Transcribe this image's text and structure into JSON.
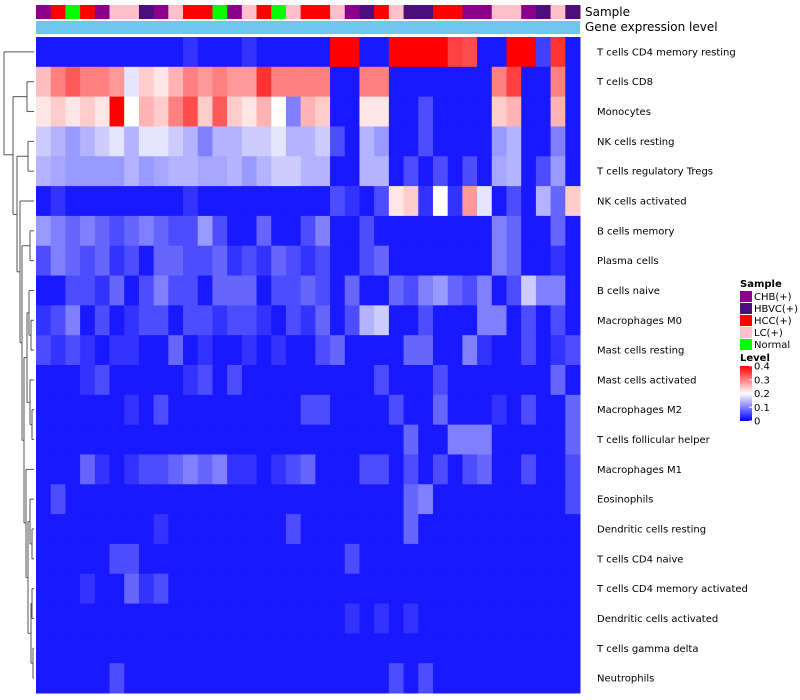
{
  "chart_data": {
    "type": "heatmap",
    "annotation_tracks": [
      "Sample",
      "Gene expression level"
    ],
    "rows": [
      "T cells CD4 memory resting",
      "T cells CD8",
      "Monocytes",
      "NK cells resting",
      "T cells regulatory  Tregs",
      "NK cells activated",
      "B cells memory",
      "Plasma cells",
      "B cells naive",
      "Macrophages M0",
      "Mast cells resting",
      "Mast cells activated",
      "Macrophages M2",
      "T cells follicular helper",
      "Macrophages M1",
      "Eosinophils",
      "Dendritic cells resting",
      "T cells CD4 naive",
      "T cells CD4 memory activated",
      "Dendritic cells activated",
      "T cells gamma delta",
      "Neutrophils"
    ],
    "sample_groups": [
      "CHB(+)",
      "HCC(+)",
      "Normal",
      "HCC(+)",
      "CHB(+)",
      "LC(+)",
      "LC(+)",
      "HBVC(+)",
      "CHB(+)",
      "LC(+)",
      "HCC(+)",
      "HCC(+)",
      "Normal",
      "CHB(+)",
      "LC(+)",
      "HCC(+)",
      "Normal",
      "LC(+)",
      "HCC(+)",
      "HCC(+)",
      "LC(+)",
      "CHB(+)",
      "HBVC(+)",
      "HCC(+)",
      "LC(+)",
      "HBVC(+)",
      "HBVC(+)",
      "HCC(+)",
      "HCC(+)",
      "CHB(+)",
      "CHB(+)",
      "LC(+)",
      "LC(+)",
      "CHB(+)",
      "HBVC(+)",
      "LC(+)",
      "HBVC(+)"
    ],
    "expression_level_color": "#6ec6ee",
    "values": [
      [
        0.02,
        0.02,
        0.02,
        0.02,
        0.02,
        0.02,
        0.02,
        0.02,
        0.02,
        0.02,
        0.04,
        0.02,
        0.02,
        0.02,
        0.04,
        0.02,
        0.02,
        0.02,
        0.02,
        0.02,
        0.4,
        0.4,
        0.02,
        0.02,
        0.4,
        0.4,
        0.4,
        0.4,
        0.35,
        0.34,
        0.02,
        0.02,
        0.4,
        0.4,
        0.05,
        0.36,
        0.02
      ],
      [
        0.25,
        0.3,
        0.33,
        0.3,
        0.3,
        0.28,
        0.18,
        0.24,
        0.22,
        0.26,
        0.3,
        0.28,
        0.3,
        0.28,
        0.28,
        0.36,
        0.3,
        0.3,
        0.3,
        0.3,
        0.02,
        0.02,
        0.3,
        0.3,
        0.02,
        0.02,
        0.02,
        0.02,
        0.02,
        0.02,
        0.02,
        0.3,
        0.35,
        0.02,
        0.02,
        0.3,
        0.02
      ],
      [
        0.22,
        0.24,
        0.22,
        0.24,
        0.22,
        0.4,
        0.2,
        0.26,
        0.24,
        0.3,
        0.34,
        0.24,
        0.33,
        0.24,
        0.22,
        0.26,
        0.2,
        0.1,
        0.26,
        0.24,
        0.02,
        0.02,
        0.22,
        0.22,
        0.02,
        0.02,
        0.06,
        0.02,
        0.02,
        0.02,
        0.02,
        0.24,
        0.26,
        0.02,
        0.02,
        0.26,
        0.02
      ],
      [
        0.16,
        0.14,
        0.12,
        0.14,
        0.16,
        0.18,
        0.14,
        0.18,
        0.18,
        0.16,
        0.14,
        0.1,
        0.14,
        0.14,
        0.16,
        0.16,
        0.18,
        0.14,
        0.14,
        0.16,
        0.06,
        0.02,
        0.14,
        0.12,
        0.02,
        0.02,
        0.06,
        0.02,
        0.02,
        0.02,
        0.02,
        0.12,
        0.14,
        0.02,
        0.02,
        0.1,
        0.02
      ],
      [
        0.14,
        0.13,
        0.12,
        0.12,
        0.12,
        0.12,
        0.14,
        0.12,
        0.13,
        0.14,
        0.14,
        0.13,
        0.13,
        0.14,
        0.12,
        0.14,
        0.16,
        0.16,
        0.14,
        0.14,
        0.02,
        0.02,
        0.14,
        0.14,
        0.02,
        0.06,
        0.02,
        0.06,
        0.02,
        0.06,
        0.02,
        0.13,
        0.14,
        0.02,
        0.06,
        0.12,
        0.02
      ],
      [
        0.02,
        0.04,
        0.02,
        0.02,
        0.02,
        0.02,
        0.02,
        0.02,
        0.02,
        0.02,
        0.04,
        0.02,
        0.02,
        0.02,
        0.02,
        0.02,
        0.02,
        0.02,
        0.02,
        0.02,
        0.06,
        0.04,
        0.02,
        0.06,
        0.22,
        0.24,
        0.04,
        0.2,
        0.04,
        0.28,
        0.18,
        0.02,
        0.06,
        0.02,
        0.14,
        0.08,
        0.24
      ],
      [
        0.12,
        0.1,
        0.08,
        0.1,
        0.08,
        0.06,
        0.08,
        0.1,
        0.08,
        0.06,
        0.06,
        0.12,
        0.06,
        0.02,
        0.02,
        0.08,
        0.02,
        0.02,
        0.06,
        0.1,
        0.02,
        0.02,
        0.06,
        0.02,
        0.02,
        0.02,
        0.02,
        0.02,
        0.02,
        0.02,
        0.02,
        0.1,
        0.08,
        0.02,
        0.02,
        0.08,
        0.02
      ],
      [
        0.06,
        0.1,
        0.08,
        0.06,
        0.08,
        0.04,
        0.06,
        0.02,
        0.08,
        0.08,
        0.06,
        0.06,
        0.08,
        0.04,
        0.06,
        0.04,
        0.08,
        0.06,
        0.04,
        0.06,
        0.02,
        0.02,
        0.06,
        0.08,
        0.02,
        0.02,
        0.02,
        0.02,
        0.02,
        0.02,
        0.02,
        0.1,
        0.08,
        0.02,
        0.02,
        0.04,
        0.02
      ],
      [
        0.02,
        0.02,
        0.06,
        0.06,
        0.04,
        0.08,
        0.02,
        0.06,
        0.1,
        0.06,
        0.06,
        0.02,
        0.08,
        0.08,
        0.08,
        0.02,
        0.06,
        0.06,
        0.08,
        0.06,
        0.02,
        0.08,
        0.02,
        0.02,
        0.08,
        0.06,
        0.1,
        0.12,
        0.08,
        0.06,
        0.1,
        0.02,
        0.06,
        0.16,
        0.1,
        0.1,
        0.02
      ],
      [
        0.04,
        0.06,
        0.1,
        0.02,
        0.06,
        0.02,
        0.04,
        0.06,
        0.06,
        0.02,
        0.06,
        0.06,
        0.04,
        0.06,
        0.06,
        0.04,
        0.02,
        0.06,
        0.04,
        0.08,
        0.02,
        0.06,
        0.14,
        0.16,
        0.02,
        0.02,
        0.06,
        0.02,
        0.02,
        0.02,
        0.1,
        0.1,
        0.02,
        0.06,
        0.02,
        0.06,
        0.02
      ],
      [
        0.06,
        0.04,
        0.06,
        0.04,
        0.02,
        0.04,
        0.04,
        0.02,
        0.02,
        0.08,
        0.02,
        0.04,
        0.02,
        0.02,
        0.04,
        0.02,
        0.04,
        0.02,
        0.02,
        0.06,
        0.08,
        0.02,
        0.02,
        0.02,
        0.02,
        0.08,
        0.08,
        0.02,
        0.02,
        0.1,
        0.04,
        0.02,
        0.02,
        0.06,
        0.02,
        0.04,
        0.06
      ],
      [
        0.02,
        0.02,
        0.02,
        0.04,
        0.06,
        0.02,
        0.02,
        0.02,
        0.02,
        0.02,
        0.04,
        0.06,
        0.02,
        0.06,
        0.02,
        0.02,
        0.02,
        0.02,
        0.02,
        0.02,
        0.02,
        0.02,
        0.02,
        0.06,
        0.02,
        0.02,
        0.02,
        0.06,
        0.02,
        0.02,
        0.02,
        0.02,
        0.02,
        0.02,
        0.02,
        0.08,
        0.02
      ],
      [
        0.02,
        0.02,
        0.02,
        0.02,
        0.02,
        0.02,
        0.04,
        0.02,
        0.06,
        0.02,
        0.02,
        0.02,
        0.02,
        0.02,
        0.02,
        0.02,
        0.02,
        0.02,
        0.06,
        0.06,
        0.02,
        0.02,
        0.02,
        0.02,
        0.06,
        0.02,
        0.02,
        0.08,
        0.02,
        0.02,
        0.02,
        0.04,
        0.02,
        0.06,
        0.02,
        0.02,
        0.08
      ],
      [
        0.02,
        0.02,
        0.02,
        0.02,
        0.02,
        0.02,
        0.02,
        0.02,
        0.02,
        0.02,
        0.02,
        0.02,
        0.02,
        0.02,
        0.02,
        0.02,
        0.02,
        0.02,
        0.02,
        0.02,
        0.02,
        0.02,
        0.02,
        0.02,
        0.02,
        0.08,
        0.02,
        0.02,
        0.1,
        0.1,
        0.1,
        0.02,
        0.02,
        0.02,
        0.02,
        0.02,
        0.08
      ],
      [
        0.02,
        0.02,
        0.02,
        0.08,
        0.04,
        0.02,
        0.04,
        0.06,
        0.06,
        0.08,
        0.1,
        0.08,
        0.1,
        0.04,
        0.04,
        0.02,
        0.04,
        0.06,
        0.08,
        0.02,
        0.02,
        0.02,
        0.06,
        0.06,
        0.02,
        0.06,
        0.02,
        0.06,
        0.02,
        0.06,
        0.08,
        0.02,
        0.02,
        0.06,
        0.02,
        0.02,
        0.06
      ],
      [
        0.02,
        0.06,
        0.02,
        0.02,
        0.02,
        0.02,
        0.02,
        0.02,
        0.02,
        0.02,
        0.02,
        0.02,
        0.02,
        0.02,
        0.02,
        0.02,
        0.02,
        0.02,
        0.02,
        0.02,
        0.02,
        0.02,
        0.02,
        0.02,
        0.02,
        0.08,
        0.1,
        0.02,
        0.02,
        0.02,
        0.02,
        0.02,
        0.02,
        0.02,
        0.02,
        0.02,
        0.06
      ],
      [
        0.02,
        0.02,
        0.02,
        0.02,
        0.02,
        0.02,
        0.02,
        0.02,
        0.04,
        0.02,
        0.02,
        0.02,
        0.02,
        0.02,
        0.02,
        0.02,
        0.02,
        0.06,
        0.02,
        0.02,
        0.02,
        0.02,
        0.02,
        0.02,
        0.02,
        0.08,
        0.02,
        0.02,
        0.02,
        0.02,
        0.02,
        0.02,
        0.02,
        0.02,
        0.02,
        0.02,
        0.02
      ],
      [
        0.02,
        0.02,
        0.02,
        0.02,
        0.02,
        0.06,
        0.06,
        0.02,
        0.02,
        0.02,
        0.02,
        0.02,
        0.02,
        0.02,
        0.02,
        0.02,
        0.02,
        0.02,
        0.02,
        0.02,
        0.02,
        0.06,
        0.02,
        0.02,
        0.02,
        0.02,
        0.02,
        0.02,
        0.02,
        0.02,
        0.02,
        0.02,
        0.02,
        0.02,
        0.02,
        0.02,
        0.02
      ],
      [
        0.02,
        0.02,
        0.02,
        0.04,
        0.02,
        0.02,
        0.08,
        0.04,
        0.06,
        0.02,
        0.02,
        0.02,
        0.02,
        0.02,
        0.02,
        0.02,
        0.02,
        0.02,
        0.02,
        0.02,
        0.02,
        0.02,
        0.02,
        0.02,
        0.02,
        0.02,
        0.02,
        0.02,
        0.02,
        0.02,
        0.02,
        0.02,
        0.02,
        0.02,
        0.02,
        0.02,
        0.02
      ],
      [
        0.02,
        0.02,
        0.02,
        0.02,
        0.02,
        0.02,
        0.02,
        0.02,
        0.02,
        0.02,
        0.02,
        0.02,
        0.02,
        0.02,
        0.02,
        0.02,
        0.02,
        0.02,
        0.02,
        0.02,
        0.02,
        0.04,
        0.02,
        0.04,
        0.02,
        0.04,
        0.02,
        0.02,
        0.02,
        0.02,
        0.02,
        0.02,
        0.02,
        0.02,
        0.02,
        0.02,
        0.02
      ],
      [
        0.02,
        0.02,
        0.02,
        0.02,
        0.02,
        0.02,
        0.02,
        0.02,
        0.02,
        0.02,
        0.02,
        0.02,
        0.02,
        0.02,
        0.02,
        0.02,
        0.02,
        0.02,
        0.02,
        0.02,
        0.02,
        0.02,
        0.02,
        0.02,
        0.02,
        0.02,
        0.02,
        0.02,
        0.02,
        0.02,
        0.02,
        0.02,
        0.02,
        0.02,
        0.02,
        0.02,
        0.02
      ],
      [
        0.02,
        0.02,
        0.02,
        0.02,
        0.02,
        0.06,
        0.02,
        0.02,
        0.02,
        0.02,
        0.02,
        0.02,
        0.02,
        0.02,
        0.02,
        0.02,
        0.02,
        0.02,
        0.02,
        0.02,
        0.02,
        0.02,
        0.02,
        0.02,
        0.06,
        0.02,
        0.06,
        0.02,
        0.02,
        0.02,
        0.02,
        0.02,
        0.02,
        0.02,
        0.02,
        0.02,
        0.02
      ]
    ],
    "color_scale": {
      "min": 0,
      "max": 0.4,
      "stops": [
        {
          "value": 0.0,
          "color": "#0000ff"
        },
        {
          "value": 0.2,
          "color": "#ffffff"
        },
        {
          "value": 0.4,
          "color": "#ff0000"
        }
      ]
    },
    "legend": {
      "sample_title": "Sample",
      "sample_entries": [
        {
          "label": "CHB(+)",
          "color": "#8b008b"
        },
        {
          "label": "HBVC(+)",
          "color": "#4b0f7a"
        },
        {
          "label": "HCC(+)",
          "color": "#ff0000"
        },
        {
          "label": "LC(+)",
          "color": "#ffc0cb"
        },
        {
          "label": "Normal",
          "color": "#00ff00"
        }
      ],
      "level_title": "Level",
      "level_ticks": [
        "0.4",
        "0.3",
        "0.2",
        "0.1",
        "0"
      ],
      "level_tick_values": [
        0.4,
        0.3,
        0.2,
        0.1,
        0
      ]
    }
  }
}
